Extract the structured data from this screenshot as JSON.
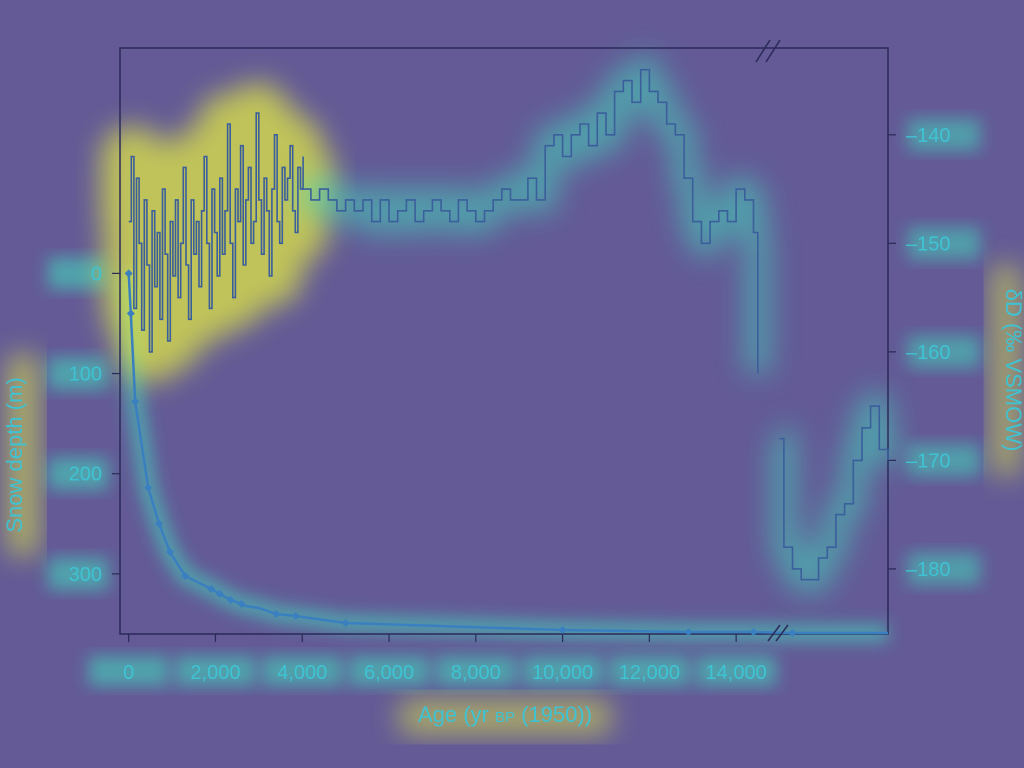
{
  "colors": {
    "background": "#635a96",
    "frame": "#2a2a58",
    "tick_text": "#3fc3d3",
    "series_isotope": "#3a5f9c",
    "series_depth": "#3a7fbf",
    "glow_hot": "#e8f040",
    "glow_mid": "#40e0c0",
    "glow_cool": "#4aa8e8"
  },
  "chart_data": {
    "type": "line",
    "title": "",
    "xlabel_main": "Age (yr ",
    "xlabel_sub": "BP",
    "xlabel_tail": " (1950))",
    "ylabel_left": "Snow depth (m)",
    "ylabel_right": "δD (‰ VSMOW)",
    "xlim": [
      -200,
      17500
    ],
    "x_break_at": 15000,
    "x_ticks": [
      0,
      2000,
      4000,
      6000,
      8000,
      10000,
      12000,
      14000
    ],
    "x_tick_labels": [
      "0",
      "2,000",
      "4,000",
      "6,000",
      "8,000",
      "10,000",
      "12,000",
      "14,000"
    ],
    "y_left_lim": [
      -225,
      360
    ],
    "y_left_ticks": [
      0,
      100,
      200,
      300
    ],
    "y_left_tick_labels": [
      "0",
      "100",
      "200",
      "300"
    ],
    "y_right_lim": [
      -186,
      -132
    ],
    "y_right_ticks": [
      -140,
      -150,
      -160,
      -170,
      -180
    ],
    "y_right_tick_labels": [
      "–140",
      "–150",
      "–160",
      "–170",
      "–180"
    ],
    "series": [
      {
        "name": "Snow depth",
        "axis": "left",
        "x": [
          0,
          50,
          150,
          450,
          700,
          950,
          1300,
          1900,
          2100,
          2350,
          2600,
          2700,
          3000,
          3400,
          3850,
          5000,
          10000,
          12900,
          14400,
          15300,
          17500
        ],
        "values": [
          0,
          40,
          128,
          214,
          250,
          278,
          302,
          315,
          320,
          326,
          330,
          332,
          334,
          340,
          342,
          349,
          356,
          358,
          358,
          359,
          359
        ],
        "markers_x": [
          0,
          50,
          150,
          450,
          700,
          950,
          1300,
          1900,
          2100,
          2350,
          2600,
          3400,
          3850,
          5000,
          10000,
          12900,
          14400,
          15300
        ]
      },
      {
        "name": "δD isotope",
        "axis": "right",
        "segments": [
          {
            "x": [
              0,
              60,
              120,
              180,
              240,
              300,
              360,
              420,
              480,
              540,
              600,
              660,
              720,
              780,
              840,
              900,
              960,
              1020,
              1080,
              1140,
              1200,
              1260,
              1320,
              1380,
              1440,
              1500,
              1560,
              1620,
              1680,
              1740,
              1800,
              1860,
              1920,
              1980,
              2040,
              2100,
              2160,
              2220,
              2280,
              2340,
              2400,
              2460,
              2520,
              2580,
              2640,
              2700,
              2760,
              2820,
              2880,
              2940,
              3000,
              3060,
              3120,
              3180,
              3240,
              3300,
              3360,
              3420,
              3480,
              3540,
              3600,
              3660,
              3720,
              3780,
              3840,
              3900,
              3960,
              4020
            ],
            "values": [
              -148,
              -142,
              -156,
              -144,
              -150,
              -158,
              -146,
              -152,
              -160,
              -147,
              -154,
              -149,
              -157,
              -145,
              -151,
              -159,
              -148,
              -153,
              -146,
              -155,
              -150,
              -143,
              -152,
              -157,
              -146,
              -151,
              -148,
              -154,
              -147,
              -142,
              -150,
              -156,
              -145,
              -149,
              -153,
              -144,
              -151,
              -147,
              -139,
              -150,
              -155,
              -145,
              -148,
              -141,
              -152,
              -146,
              -143,
              -150,
              -148,
              -138,
              -146,
              -151,
              -144,
              -147,
              -153,
              -145,
              -140,
              -148,
              -150,
              -143,
              -146,
              -144,
              -141,
              -147,
              -149,
              -143,
              -145,
              -142
            ]
          },
          {
            "x": [
              4000,
              4200,
              4400,
              4600,
              4800,
              5000,
              5200,
              5400,
              5600,
              5800,
              6000,
              6200,
              6400,
              6600,
              6800,
              7000,
              7200,
              7400,
              7600,
              7800,
              8000,
              8200,
              8400,
              8600,
              8800,
              9000,
              9200,
              9400,
              9600,
              9800,
              10000,
              10200,
              10400,
              10600,
              10800,
              11000,
              11200,
              11400,
              11600,
              11800,
              12000,
              12200,
              12400,
              12600,
              12800,
              13000,
              13200,
              13400,
              13600,
              13800,
              14000,
              14200,
              14400,
              14500
            ],
            "values": [
              -145,
              -146,
              -145,
              -146,
              -147,
              -146,
              -147,
              -146,
              -148,
              -146,
              -148,
              -147,
              -146,
              -148,
              -147,
              -146,
              -147,
              -148,
              -146,
              -147,
              -148,
              -147,
              -146,
              -145,
              -146,
              -146,
              -144,
              -146,
              -141,
              -140,
              -142,
              -140,
              -139,
              -141,
              -138,
              -140,
              -136,
              -135,
              -137,
              -134,
              -136,
              -137,
              -139,
              -140,
              -144,
              -148,
              -150,
              -148,
              -147,
              -148,
              -145,
              -146,
              -149,
              -162
            ]
          },
          {
            "x": [
              15000,
              15100,
              15300,
              15500,
              15700,
              15900,
              16100,
              16300,
              16500,
              16700,
              16900,
              17100,
              17300,
              17500
            ],
            "values": [
              -168,
              -178,
              -180,
              -181,
              -181,
              -179,
              -178,
              -175,
              -174,
              -170,
              -167,
              -165,
              -169,
              -170
            ]
          }
        ]
      }
    ]
  }
}
